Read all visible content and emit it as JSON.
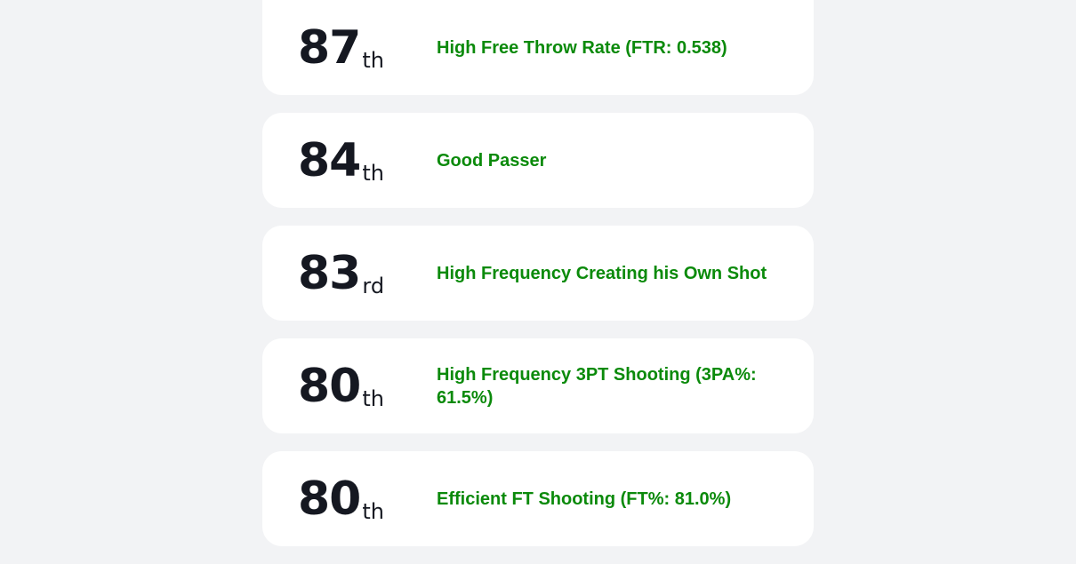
{
  "percentiles": [
    {
      "rank": "87",
      "suffix": "th",
      "label": "High Free Throw Rate (FTR: 0.538)"
    },
    {
      "rank": "84",
      "suffix": "th",
      "label": "Good Passer"
    },
    {
      "rank": "83",
      "suffix": "rd",
      "label": "High Frequency Creating his Own Shot"
    },
    {
      "rank": "80",
      "suffix": "th",
      "label": "High Frequency 3PT Shooting (3PA%: 61.5%)"
    },
    {
      "rank": "80",
      "suffix": "th",
      "label": "Efficient FT Shooting (FT%: 81.0%)"
    }
  ],
  "colors": {
    "background": "#f2f3f5",
    "card": "#ffffff",
    "rank_text": "#151821",
    "label_text": "#0b8a0b"
  }
}
